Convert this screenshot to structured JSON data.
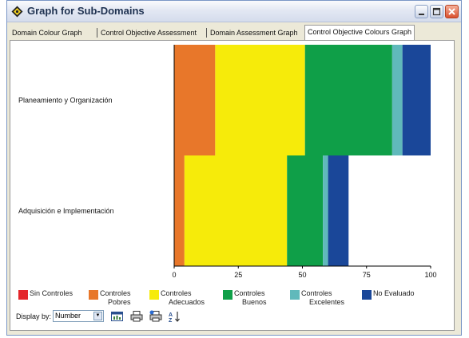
{
  "window": {
    "title": "Graph for Sub-Domains"
  },
  "tabs": [
    {
      "label": "Domain Colour Graph"
    },
    {
      "label": "Control Objective Assessment"
    },
    {
      "label": "Domain Assessment Graph"
    },
    {
      "label": "Control Objective Colours Graph"
    }
  ],
  "chart_data": {
    "type": "bar",
    "orientation": "horizontal",
    "stacked": true,
    "categories": [
      "Planeamiento y Organización",
      "Adquisición e Implementación"
    ],
    "series": [
      {
        "name": "Sin Controles",
        "color": "#e4262b",
        "values": [
          0,
          0
        ]
      },
      {
        "name": "Controles Pobres",
        "color": "#e8772a",
        "values": [
          16,
          4
        ]
      },
      {
        "name": "Controles Adecuados",
        "color": "#f6eb0a",
        "values": [
          35,
          40
        ]
      },
      {
        "name": "Controles Buenos",
        "color": "#0f9f48",
        "values": [
          34,
          14
        ]
      },
      {
        "name": "Controles Excelentes",
        "color": "#60b9bb",
        "values": [
          4,
          2
        ]
      },
      {
        "name": "No Evaluado",
        "color": "#1a4799",
        "values": [
          11,
          8
        ]
      }
    ],
    "xlim": [
      0,
      100
    ],
    "xticks": [
      "0",
      "25",
      "50",
      "75",
      "100"
    ],
    "legend_position": "bottom"
  },
  "legend": [
    {
      "line1": "Sin Controles",
      "line2": ""
    },
    {
      "line1": "Controles",
      "line2": "Pobres"
    },
    {
      "line1": "Controles",
      "line2": "Adecuados"
    },
    {
      "line1": "Controles",
      "line2": "Buenos"
    },
    {
      "line1": "Controles",
      "line2": "Excelentes"
    },
    {
      "line1": "No Evaluado",
      "line2": ""
    }
  ],
  "display": {
    "label": "Display by:",
    "value": "Number"
  },
  "toolbar": {
    "icons": [
      "chart-icon",
      "print-icon",
      "print-setup-icon",
      "sort-icon"
    ]
  }
}
